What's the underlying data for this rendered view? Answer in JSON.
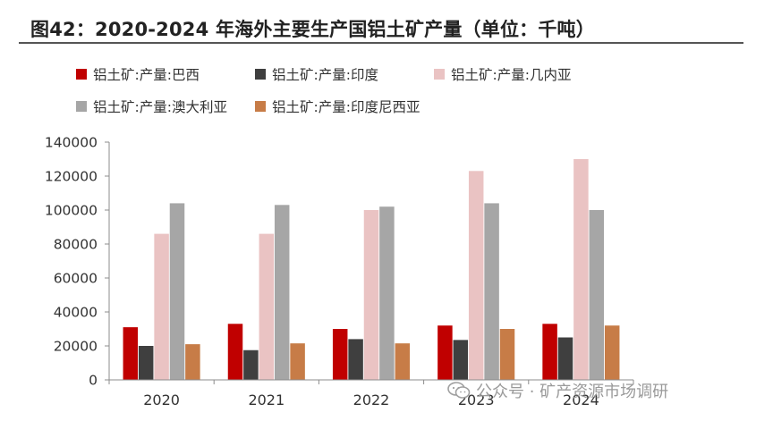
{
  "title": "图42：2020-2024 年海外主要生产国铝土矿产量（单位：千吨）",
  "watermark": {
    "text": "公众号 · 矿产资源市场调研"
  },
  "chart_data": {
    "type": "bar",
    "title": "2020-2024 年海外主要生产国铝土矿产量（单位：千吨）",
    "categories": [
      "2020",
      "2021",
      "2022",
      "2023",
      "2024"
    ],
    "ylim": [
      0,
      140000
    ],
    "yticks": [
      0,
      20000,
      40000,
      60000,
      80000,
      100000,
      120000,
      140000
    ],
    "xlabel": "",
    "ylabel": "",
    "legend_position": "top",
    "grid": false,
    "series": [
      {
        "name": "铝土矿:产量:巴西",
        "color": "#c00000",
        "values": [
          31000,
          33000,
          30000,
          32000,
          33000
        ]
      },
      {
        "name": "铝土矿:产量:印度",
        "color": "#3f3f3f",
        "values": [
          20000,
          17500,
          24000,
          23500,
          25000
        ]
      },
      {
        "name": "铝土矿:产量:几内亚",
        "color": "#eac3c3",
        "values": [
          86000,
          86000,
          100000,
          123000,
          130000
        ]
      },
      {
        "name": "铝土矿:产量:澳大利亚",
        "color": "#a6a6a6",
        "values": [
          104000,
          103000,
          102000,
          104000,
          100000
        ]
      },
      {
        "name": "铝土矿:产量:印度尼西亚",
        "color": "#c77c47",
        "values": [
          21000,
          21500,
          21500,
          30000,
          32000
        ]
      }
    ]
  }
}
